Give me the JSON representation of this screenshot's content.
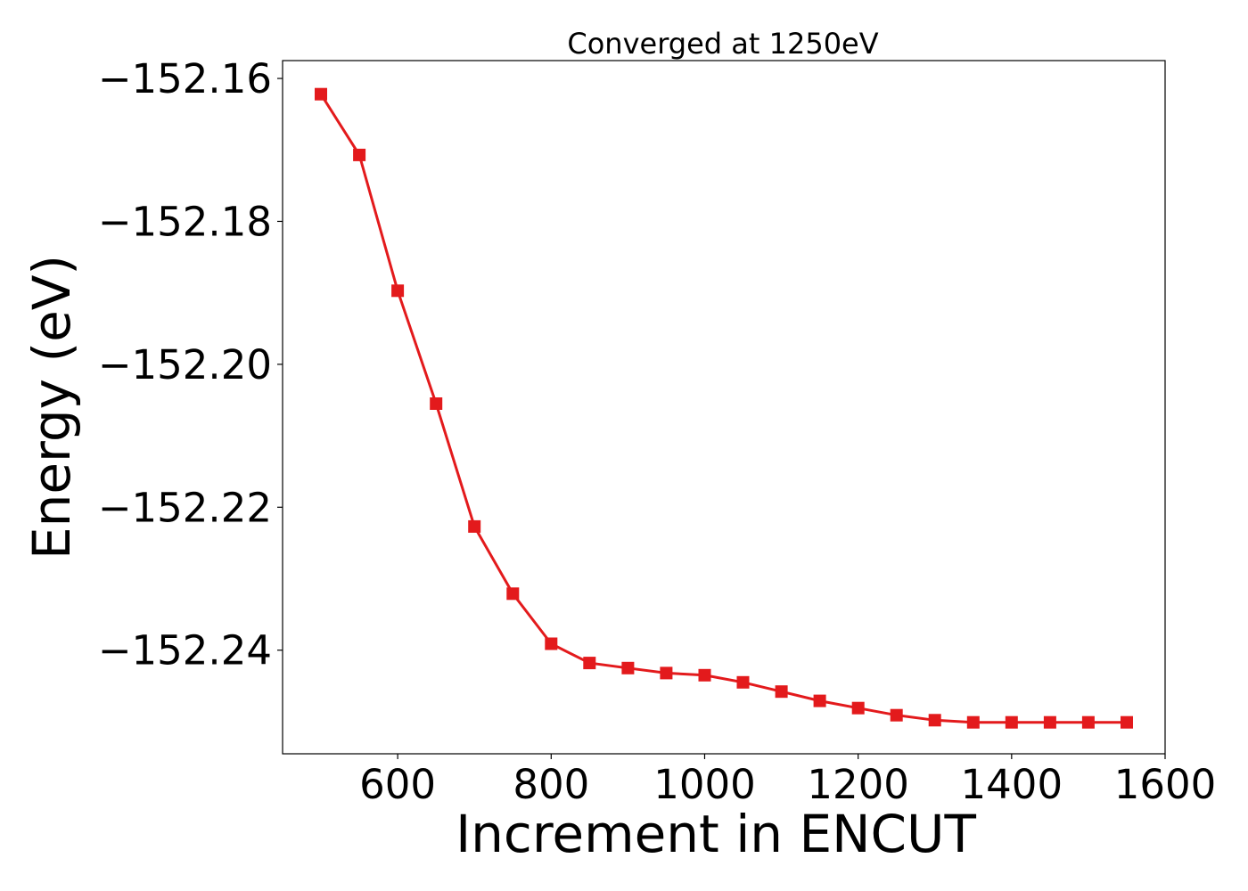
{
  "chart_data": {
    "type": "line",
    "title": "Converged at 1250eV",
    "xlabel": "Increment in ENCUT",
    "ylabel": "Energy (eV)",
    "xlim": [
      450,
      1600
    ],
    "ylim": [
      -152.2545,
      -152.1575
    ],
    "grid": false,
    "xticks": [
      600,
      800,
      1000,
      1200,
      1400,
      1600
    ],
    "xtick_labels": [
      "600",
      "800",
      "1000",
      "1200",
      "1400",
      "1600"
    ],
    "yticks": [
      -152.16,
      -152.18,
      -152.2,
      -152.22,
      -152.24
    ],
    "ytick_labels": [
      "−152.16",
      "−152.18",
      "−152.20",
      "−152.22",
      "−152.24"
    ],
    "series": [
      {
        "color": "#e31a1c",
        "marker": "square",
        "x": [
          500,
          550,
          600,
          650,
          700,
          750,
          800,
          850,
          900,
          950,
          1000,
          1050,
          1100,
          1150,
          1200,
          1250,
          1300,
          1350,
          1400,
          1450,
          1500,
          1550
        ],
        "y": [
          -152.1622,
          -152.1707,
          -152.1897,
          -152.2055,
          -152.2227,
          -152.2321,
          -152.2391,
          -152.2418,
          -152.2425,
          -152.2432,
          -152.2435,
          -152.2445,
          -152.2458,
          -152.2471,
          -152.2481,
          -152.2491,
          -152.2498,
          -152.2501,
          -152.2501,
          -152.2501,
          -152.2501,
          -152.2501
        ]
      }
    ]
  }
}
